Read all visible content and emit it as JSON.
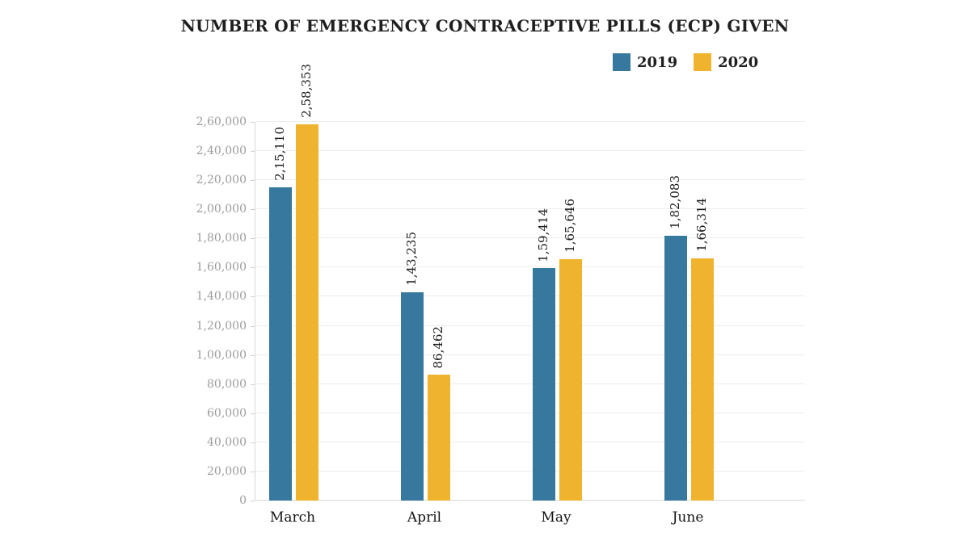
{
  "chart_data": {
    "type": "bar",
    "title": "NUMBER OF EMERGENCY CONTRACEPTIVE PILLS (ECP) GIVEN",
    "categories": [
      "March",
      "April",
      "May",
      "June"
    ],
    "series": [
      {
        "name": "2019",
        "color": "#37789E",
        "values": [
          215110,
          143235,
          159414,
          182083
        ],
        "labels": [
          "2,15,110",
          "1,43,235",
          "1,59,414",
          "1,82,083"
        ]
      },
      {
        "name": "2020",
        "color": "#EFB32D",
        "values": [
          258353,
          86462,
          165646,
          166314
        ],
        "labels": [
          "2,58,353",
          "86,462",
          "1,65,646",
          "1,66,314"
        ]
      }
    ],
    "y_ticks": [
      {
        "value": 0,
        "label": "0"
      },
      {
        "value": 20000,
        "label": "20,000"
      },
      {
        "value": 40000,
        "label": "40,000"
      },
      {
        "value": 60000,
        "label": "60,000"
      },
      {
        "value": 80000,
        "label": "80,000"
      },
      {
        "value": 100000,
        "label": "1,00,000"
      },
      {
        "value": 120000,
        "label": "1,20,000"
      },
      {
        "value": 140000,
        "label": "1,40,000"
      },
      {
        "value": 160000,
        "label": "1,60,000"
      },
      {
        "value": 180000,
        "label": "1,80,000"
      },
      {
        "value": 200000,
        "label": "2,00,000"
      },
      {
        "value": 220000,
        "label": "2,20,000"
      },
      {
        "value": 240000,
        "label": "2,40,000"
      },
      {
        "value": 260000,
        "label": "2,60,000"
      }
    ],
    "ylim": [
      0,
      260000
    ],
    "grid": "horizontal",
    "legend_position": "top-right",
    "value_label_orientation": "vertical"
  }
}
